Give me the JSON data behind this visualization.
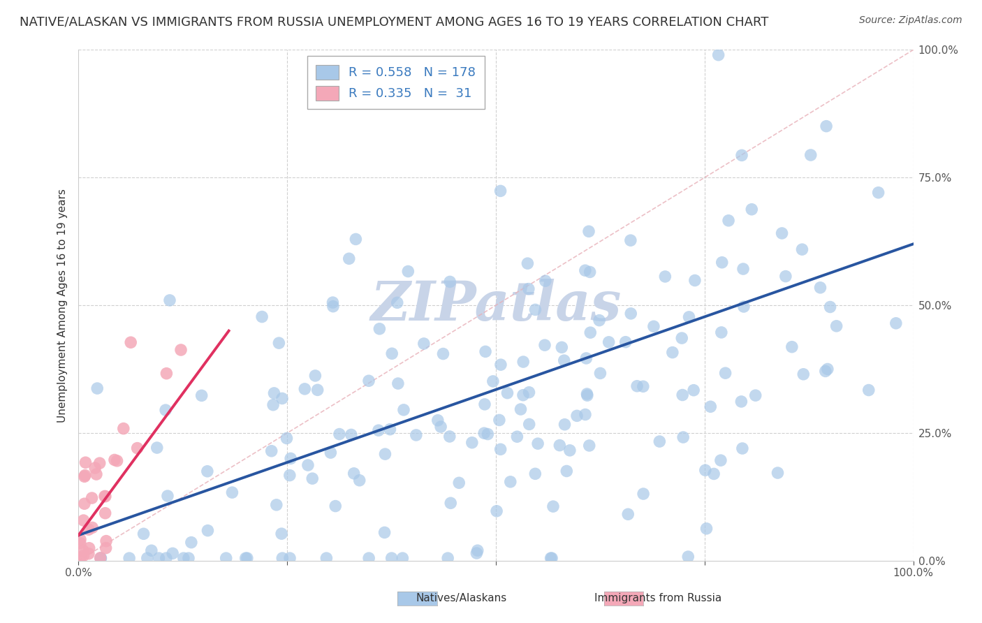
{
  "title": "NATIVE/ALASKAN VS IMMIGRANTS FROM RUSSIA UNEMPLOYMENT AMONG AGES 16 TO 19 YEARS CORRELATION CHART",
  "source": "Source: ZipAtlas.com",
  "ylabel": "Unemployment Among Ages 16 to 19 years",
  "xlim": [
    0,
    1.0
  ],
  "ylim": [
    0,
    1.0
  ],
  "xtick_labels": [
    "0.0%",
    "",
    "",
    "",
    "100.0%"
  ],
  "xtick_vals": [
    0,
    0.25,
    0.5,
    0.75,
    1.0
  ],
  "ytick_vals": [
    0,
    0.25,
    0.5,
    0.75,
    1.0
  ],
  "right_ytick_labels": [
    "0.0%",
    "25.0%",
    "50.0%",
    "75.0%",
    "100.0%"
  ],
  "blue_color": "#a8c8e8",
  "pink_color": "#f4a8b8",
  "blue_line_color": "#2855a0",
  "pink_line_color": "#e03060",
  "diag_line_color": "#e8b0b8",
  "grid_color": "#d0d0d0",
  "watermark_color": "#c8d4e8",
  "title_fontsize": 13,
  "axis_label_fontsize": 11,
  "tick_fontsize": 11,
  "legend_fontsize": 13,
  "blue_trend_x": [
    0.0,
    1.0
  ],
  "blue_trend_y": [
    0.05,
    0.62
  ],
  "pink_trend_x": [
    0.0,
    0.18
  ],
  "pink_trend_y": [
    0.05,
    0.45
  ]
}
